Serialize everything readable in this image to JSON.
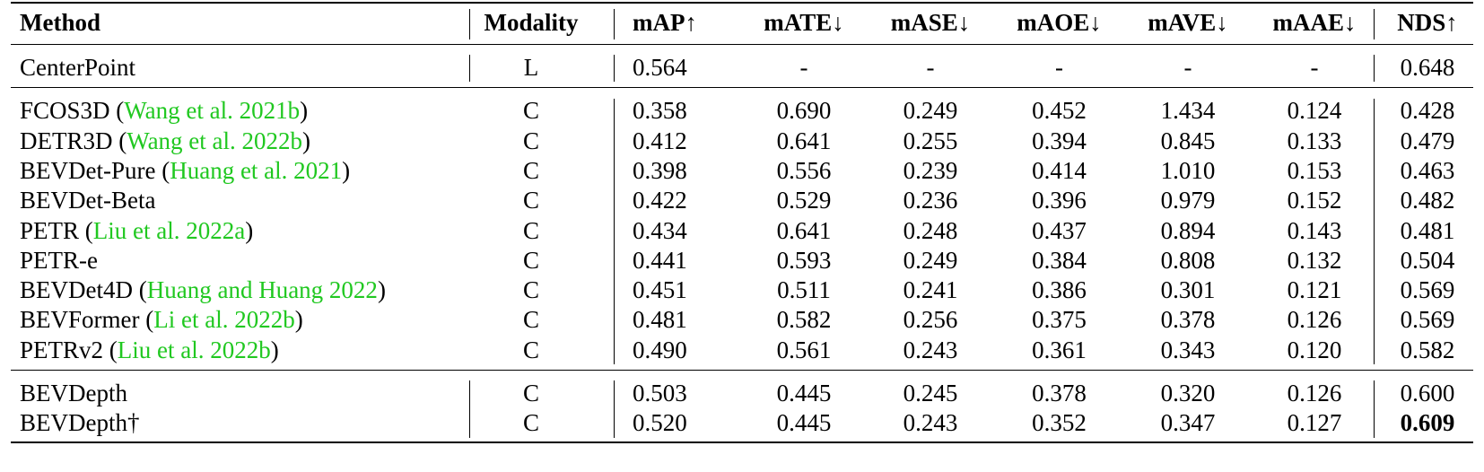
{
  "headers": {
    "method": "Method",
    "modality": "Modality",
    "map": "mAP↑",
    "mate": "mATE↓",
    "mase": "mASE↓",
    "maoe": "mAOE↓",
    "mave": "mAVE↓",
    "maae": "mAAE↓",
    "nds": "NDS↑"
  },
  "colors": {
    "citation": "#20c820",
    "text": "#000000"
  },
  "rows": [
    {
      "method": "CenterPoint",
      "cite": "",
      "modality": "L",
      "map": "0.564",
      "mate": "-",
      "mase": "-",
      "maoe": "-",
      "mave": "-",
      "maae": "-",
      "nds": "0.648"
    },
    {
      "method": "FCOS3D",
      "cite": "Wang et al. 2021b",
      "modality": "C",
      "map": "0.358",
      "mate": "0.690",
      "mase": "0.249",
      "maoe": "0.452",
      "mave": "1.434",
      "maae": "0.124",
      "nds": "0.428"
    },
    {
      "method": "DETR3D",
      "cite": "Wang et al. 2022b",
      "modality": "C",
      "map": "0.412",
      "mate": "0.641",
      "mase": "0.255",
      "maoe": "0.394",
      "mave": "0.845",
      "maae": "0.133",
      "nds": "0.479"
    },
    {
      "method": "BEVDet-Pure",
      "cite": "Huang et al. 2021",
      "modality": "C",
      "map": "0.398",
      "mate": "0.556",
      "mase": "0.239",
      "maoe": "0.414",
      "mave": "1.010",
      "maae": "0.153",
      "nds": "0.463"
    },
    {
      "method": "BEVDet-Beta",
      "cite": "",
      "modality": "C",
      "map": "0.422",
      "mate": "0.529",
      "mase": "0.236",
      "maoe": "0.396",
      "mave": "0.979",
      "maae": "0.152",
      "nds": "0.482"
    },
    {
      "method": "PETR",
      "cite": "Liu et al. 2022a",
      "modality": "C",
      "map": "0.434",
      "mate": "0.641",
      "mase": "0.248",
      "maoe": "0.437",
      "mave": "0.894",
      "maae": "0.143",
      "nds": "0.481"
    },
    {
      "method": "PETR-e",
      "cite": "",
      "modality": "C",
      "map": "0.441",
      "mate": "0.593",
      "mase": "0.249",
      "maoe": "0.384",
      "mave": "0.808",
      "maae": "0.132",
      "nds": "0.504"
    },
    {
      "method": "BEVDet4D",
      "cite": "Huang and Huang 2022",
      "modality": "C",
      "map": "0.451",
      "mate": "0.511",
      "mase": "0.241",
      "maoe": "0.386",
      "mave": "0.301",
      "maae": "0.121",
      "nds": "0.569"
    },
    {
      "method": "BEVFormer",
      "cite": "Li et al. 2022b",
      "modality": "C",
      "map": "0.481",
      "mate": "0.582",
      "mase": "0.256",
      "maoe": "0.375",
      "mave": "0.378",
      "maae": "0.126",
      "nds": "0.569"
    },
    {
      "method": "PETRv2",
      "cite": "Liu et al. 2022b",
      "modality": "C",
      "map": "0.490",
      "mate": "0.561",
      "mase": "0.243",
      "maoe": "0.361",
      "mave": "0.343",
      "maae": "0.120",
      "nds": "0.582"
    },
    {
      "method": "BEVDepth",
      "cite": "",
      "modality": "C",
      "map": "0.503",
      "mate": "0.445",
      "mase": "0.245",
      "maoe": "0.378",
      "mave": "0.320",
      "maae": "0.126",
      "nds": "0.600"
    },
    {
      "method": "BEVDepth†",
      "cite": "",
      "modality": "C",
      "map": "0.520",
      "mate": "0.445",
      "mase": "0.243",
      "maoe": "0.352",
      "mave": "0.347",
      "maae": "0.127",
      "nds": "0.609",
      "nds_bold": true
    }
  ]
}
